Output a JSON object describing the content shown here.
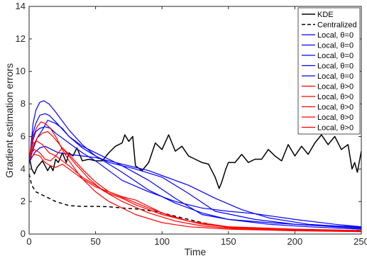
{
  "chart_data": {
    "type": "line",
    "xlabel": "Time",
    "ylabel": "Gradient estimation errors",
    "xlim": [
      0,
      250
    ],
    "ylim": [
      0,
      14
    ],
    "xticks": [
      0,
      50,
      100,
      150,
      200,
      250
    ],
    "yticks": [
      0,
      2,
      4,
      6,
      8,
      10,
      12,
      14
    ],
    "grid": false,
    "legend_position": "top-right",
    "legend": [
      {
        "label": "KDE",
        "color": "#000000",
        "dash": "solid"
      },
      {
        "label": "Centralized",
        "color": "#000000",
        "dash": "dashed"
      },
      {
        "label": "Local, θ=0",
        "color": "#0000ff",
        "dash": "solid"
      },
      {
        "label": "Local, θ=0",
        "color": "#0000ff",
        "dash": "solid"
      },
      {
        "label": "Local, θ=0",
        "color": "#0000ff",
        "dash": "solid"
      },
      {
        "label": "Local, θ=0",
        "color": "#0000ff",
        "dash": "solid"
      },
      {
        "label": "Local, θ=0",
        "color": "#0000ff",
        "dash": "solid"
      },
      {
        "label": "Local, θ>0",
        "color": "#ff0000",
        "dash": "solid"
      },
      {
        "label": "Local, θ>0",
        "color": "#ff0000",
        "dash": "solid"
      },
      {
        "label": "Local, θ>0",
        "color": "#ff0000",
        "dash": "solid"
      },
      {
        "label": "Local, θ>0",
        "color": "#ff0000",
        "dash": "solid"
      },
      {
        "label": "Local, θ>0",
        "color": "#ff0000",
        "dash": "solid"
      }
    ],
    "series": [
      {
        "name": "KDE",
        "color": "#000000",
        "dash": "solid",
        "x": [
          0,
          2,
          4,
          6,
          8,
          10,
          12,
          14,
          16,
          18,
          20,
          22,
          25,
          28,
          30,
          33,
          36,
          40,
          45,
          50,
          55,
          60,
          65,
          70,
          72,
          75,
          78,
          80,
          85,
          90,
          95,
          100,
          105,
          110,
          115,
          120,
          125,
          130,
          135,
          140,
          143,
          145,
          148,
          150,
          155,
          160,
          165,
          170,
          175,
          180,
          185,
          190,
          195,
          200,
          205,
          210,
          215,
          220,
          225,
          230,
          235,
          240,
          243,
          245,
          247,
          250
        ],
        "y": [
          4.8,
          4.0,
          3.7,
          4.1,
          4.3,
          4.5,
          4.2,
          3.9,
          4.2,
          3.9,
          4.6,
          4.4,
          5.0,
          4.4,
          5.0,
          4.8,
          5.3,
          4.5,
          4.6,
          4.5,
          4.5,
          5.0,
          5.4,
          5.6,
          6.1,
          5.7,
          6.0,
          4.2,
          3.9,
          4.4,
          5.6,
          5.2,
          6.1,
          5.1,
          5.4,
          4.8,
          4.6,
          4.4,
          4.3,
          3.5,
          2.8,
          3.2,
          4.0,
          4.4,
          4.4,
          4.9,
          4.4,
          4.6,
          4.6,
          5.2,
          4.8,
          4.5,
          5.5,
          4.8,
          5.4,
          4.9,
          5.6,
          6.1,
          5.5,
          6.0,
          5.2,
          5.5,
          4.0,
          4.4,
          3.8,
          5.1
        ]
      },
      {
        "name": "Centralized",
        "color": "#000000",
        "dash": "dashed",
        "x": [
          0,
          2,
          5,
          10,
          20,
          30,
          40,
          50,
          60,
          70,
          80,
          90,
          100,
          110,
          120,
          130,
          140,
          150,
          170,
          200,
          250
        ],
        "y": [
          3.7,
          3.0,
          2.6,
          2.4,
          2.0,
          1.75,
          1.7,
          1.7,
          1.68,
          1.6,
          1.55,
          1.45,
          1.3,
          1.1,
          0.9,
          0.7,
          0.55,
          0.42,
          0.32,
          0.26,
          0.22
        ]
      },
      {
        "name": "Local, θ=0",
        "color": "#0000ff",
        "dash": "solid",
        "x": [
          0,
          3,
          5,
          8,
          11,
          15,
          20,
          30,
          40,
          50,
          70,
          90,
          110,
          130,
          150,
          180,
          210,
          250
        ],
        "y": [
          4.3,
          6.8,
          7.6,
          8.1,
          8.2,
          8.0,
          7.5,
          6.4,
          5.5,
          4.8,
          3.8,
          2.7,
          1.9,
          1.3,
          0.9,
          0.6,
          0.45,
          0.3
        ]
      },
      {
        "name": "Local, θ=0",
        "color": "#0000ff",
        "dash": "solid",
        "x": [
          0,
          3,
          5,
          8,
          12,
          15,
          20,
          30,
          40,
          50,
          70,
          90,
          110,
          130,
          150,
          180,
          210,
          250
        ],
        "y": [
          4.4,
          6.2,
          6.8,
          7.3,
          7.4,
          7.3,
          6.9,
          6.0,
          5.4,
          5.0,
          4.2,
          3.3,
          2.2,
          1.2,
          0.9,
          0.7,
          0.55,
          0.45
        ]
      },
      {
        "name": "Local, θ=0",
        "color": "#0000ff",
        "dash": "solid",
        "x": [
          0,
          3,
          6,
          10,
          14,
          20,
          25,
          30,
          40,
          50,
          60,
          80,
          100,
          120,
          140,
          170,
          200,
          250
        ],
        "y": [
          4.4,
          5.2,
          5.9,
          6.4,
          7.0,
          6.8,
          6.5,
          6.0,
          5.3,
          4.8,
          4.4,
          4.0,
          3.5,
          2.5,
          1.4,
          0.9,
          0.6,
          0.35
        ]
      },
      {
        "name": "Local, θ=0",
        "color": "#0000ff",
        "dash": "solid",
        "x": [
          0,
          3,
          5,
          8,
          12,
          16,
          20,
          30,
          40,
          50,
          70,
          90,
          110,
          130,
          150,
          170,
          200,
          230,
          250
        ],
        "y": [
          4.5,
          5.8,
          6.3,
          6.5,
          6.6,
          6.5,
          6.2,
          5.6,
          5.0,
          4.5,
          3.3,
          2.6,
          2.0,
          1.6,
          1.4,
          1.25,
          0.9,
          0.6,
          0.45
        ]
      },
      {
        "name": "Local, θ=0",
        "color": "#0000ff",
        "dash": "solid",
        "x": [
          0,
          4,
          8,
          12,
          17,
          22,
          30,
          40,
          50,
          60,
          70,
          80,
          90,
          100,
          120,
          140,
          160,
          180,
          210,
          250
        ],
        "y": [
          4.4,
          5.0,
          5.3,
          5.4,
          5.2,
          5.0,
          4.9,
          4.8,
          4.7,
          4.5,
          4.3,
          4.1,
          3.9,
          3.6,
          3.0,
          2.2,
          1.5,
          1.0,
          0.6,
          0.4
        ]
      },
      {
        "name": "Local, θ>0",
        "color": "#ff0000",
        "dash": "solid",
        "x": [
          0,
          3,
          6,
          9,
          12,
          16,
          20,
          25,
          30,
          40,
          50,
          60,
          80,
          100,
          120,
          150,
          200,
          250
        ],
        "y": [
          4.7,
          6.0,
          6.6,
          6.9,
          6.8,
          6.5,
          6.0,
          5.2,
          4.5,
          3.4,
          2.6,
          2.0,
          1.2,
          0.7,
          0.45,
          0.3,
          0.2,
          0.15
        ]
      },
      {
        "name": "Local, θ>0",
        "color": "#ff0000",
        "dash": "solid",
        "x": [
          0,
          3,
          6,
          10,
          14,
          18,
          22,
          28,
          35,
          45,
          55,
          70,
          90,
          110,
          130,
          160,
          200,
          250
        ],
        "y": [
          4.6,
          5.4,
          5.9,
          6.2,
          6.3,
          6.0,
          5.6,
          5.0,
          4.3,
          3.4,
          2.7,
          2.0,
          1.3,
          0.8,
          0.5,
          0.3,
          0.22,
          0.18
        ]
      },
      {
        "name": "Local, θ>0",
        "color": "#ff0000",
        "dash": "solid",
        "x": [
          0,
          3,
          6,
          10,
          15,
          20,
          25,
          30,
          40,
          50,
          60,
          75,
          90,
          110,
          130,
          160,
          200,
          250
        ],
        "y": [
          4.8,
          5.6,
          5.7,
          5.5,
          5.0,
          4.8,
          5.3,
          4.9,
          4.0,
          3.2,
          2.6,
          2.1,
          1.6,
          1.0,
          0.6,
          0.35,
          0.25,
          0.2
        ]
      },
      {
        "name": "Local, θ>0",
        "color": "#ff0000",
        "dash": "solid",
        "x": [
          0,
          4,
          8,
          12,
          16,
          20,
          25,
          30,
          40,
          50,
          60,
          70,
          80,
          100,
          120,
          150,
          200,
          250
        ],
        "y": [
          4.8,
          5.2,
          5.0,
          4.6,
          4.5,
          4.8,
          4.5,
          4.2,
          3.5,
          3.0,
          2.5,
          2.2,
          1.8,
          1.2,
          0.8,
          0.45,
          0.3,
          0.22
        ]
      },
      {
        "name": "Local, θ>0",
        "color": "#ff0000",
        "dash": "solid",
        "x": [
          0,
          4,
          8,
          12,
          16,
          20,
          25,
          30,
          40,
          50,
          60,
          70,
          80,
          90,
          100,
          120,
          150,
          200,
          250
        ],
        "y": [
          4.6,
          4.9,
          4.8,
          4.4,
          4.2,
          4.1,
          4.3,
          4.0,
          3.4,
          2.9,
          2.6,
          2.3,
          2.1,
          1.7,
          1.3,
          0.8,
          0.4,
          0.28,
          0.2
        ]
      }
    ]
  }
}
